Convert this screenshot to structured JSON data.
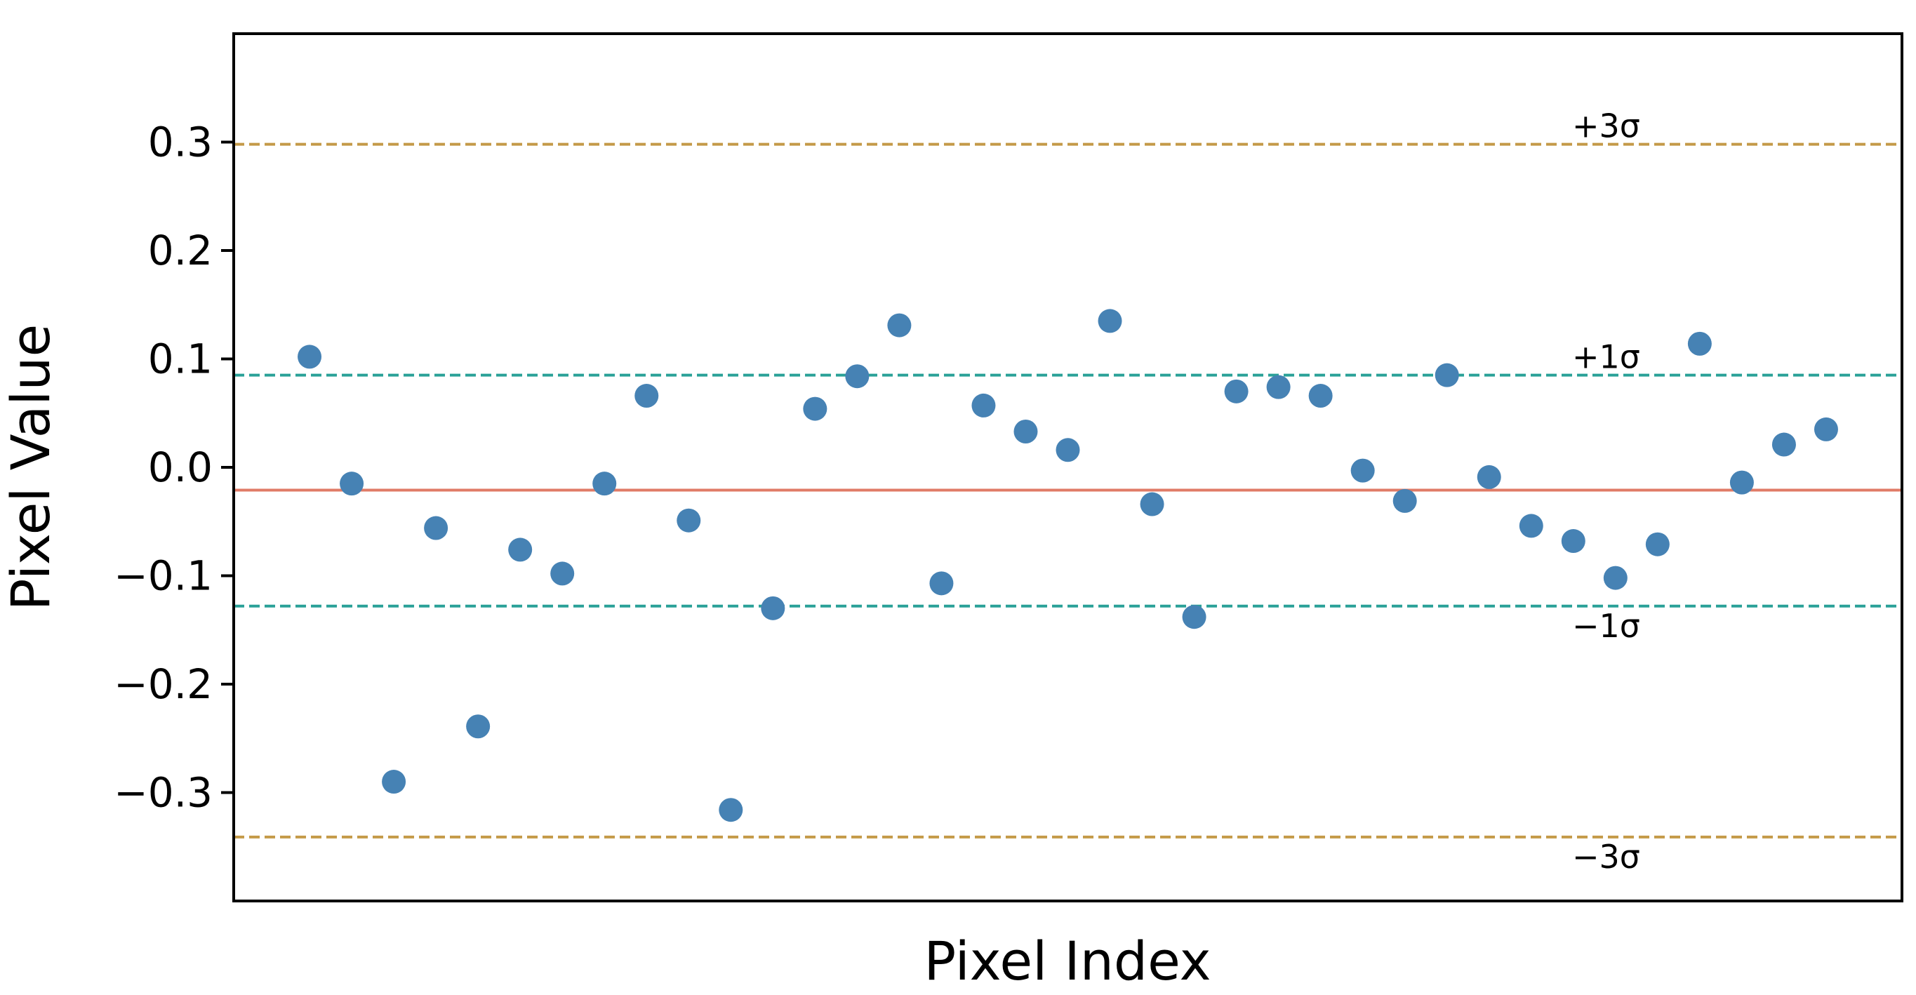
{
  "chart_data": {
    "type": "scatter",
    "title": "",
    "xlabel": "Pixel Index",
    "ylabel": "Pixel Value",
    "xlim": [
      -1.8,
      37.8
    ],
    "ylim": [
      -0.4,
      0.4
    ],
    "yticks": [
      -0.3,
      -0.2,
      -0.1,
      0.0,
      0.1,
      0.2,
      0.3
    ],
    "ytick_labels": [
      "−0.3",
      "−0.2",
      "−0.1",
      "0.0",
      "0.1",
      "0.2",
      "0.3"
    ],
    "xticks_visible": false,
    "grid": false,
    "colors": {
      "points": "#4682b4",
      "mean_line": "#e07b67",
      "sigma1_line": "#2aa198",
      "sigma3_line": "#c49a48",
      "frame": "#000000"
    },
    "series": [
      {
        "x": [
          0,
          1,
          2,
          3,
          4,
          5,
          6,
          7,
          8,
          9,
          10,
          11,
          12,
          13,
          14,
          15,
          16,
          17,
          18,
          19,
          20,
          21,
          22,
          23,
          24,
          25,
          26,
          27,
          28,
          29,
          30,
          31,
          32,
          33,
          34,
          35,
          36
        ],
        "values": [
          0.102,
          -0.015,
          -0.29,
          -0.056,
          -0.239,
          -0.076,
          -0.098,
          -0.015,
          0.066,
          -0.049,
          -0.316,
          -0.13,
          0.054,
          0.084,
          0.131,
          -0.107,
          0.057,
          0.033,
          0.016,
          0.135,
          -0.034,
          -0.138,
          0.07,
          0.074,
          0.066,
          -0.003,
          -0.031,
          0.085,
          -0.009,
          -0.054,
          -0.068,
          -0.102,
          -0.071,
          0.114,
          -0.014,
          0.021,
          0.035
        ]
      }
    ],
    "reference_lines": [
      {
        "label": "+3σ",
        "value": 0.298,
        "style": "dashed",
        "color_key": "sigma3_line"
      },
      {
        "label": "+1σ",
        "value": 0.085,
        "style": "dashed",
        "color_key": "sigma1_line"
      },
      {
        "label": "",
        "value": -0.021,
        "style": "solid",
        "color_key": "mean_line"
      },
      {
        "label": "−1σ",
        "value": -0.128,
        "style": "dashed",
        "color_key": "sigma1_line"
      },
      {
        "label": "−3σ",
        "value": -0.341,
        "style": "dashed",
        "color_key": "sigma3_line"
      }
    ]
  }
}
